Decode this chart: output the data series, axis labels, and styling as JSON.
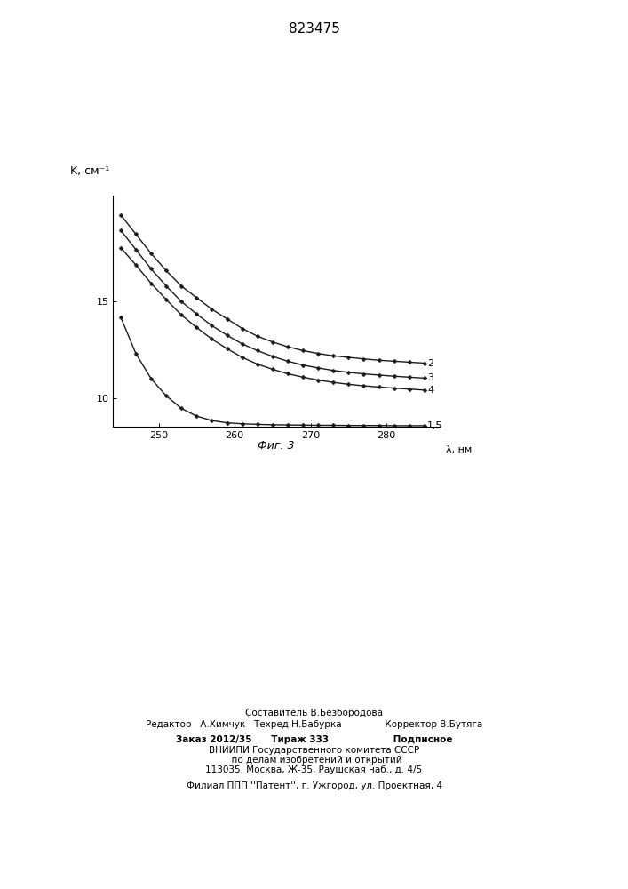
{
  "title": "823475",
  "ylabel": "K, см⁻¹",
  "xlabel": "λ, нм",
  "caption": "Фиг. 3",
  "xlim": [
    244,
    287
  ],
  "ylim": [
    8.5,
    20.5
  ],
  "xticks": [
    250,
    260,
    270,
    280
  ],
  "yticks": [
    10,
    15
  ],
  "background_color": "#ffffff",
  "curve_color": "#1a1a1a",
  "curve2_label": "2",
  "curve3_label": "3",
  "curve4_label": "4",
  "curve15_label": "1,5",
  "x_data": [
    245,
    247,
    249,
    251,
    253,
    255,
    257,
    259,
    261,
    263,
    265,
    267,
    269,
    271,
    273,
    275,
    277,
    279,
    281,
    283,
    285
  ],
  "y_curve2": [
    19.5,
    18.5,
    17.5,
    16.6,
    15.8,
    15.2,
    14.6,
    14.1,
    13.6,
    13.2,
    12.9,
    12.65,
    12.45,
    12.3,
    12.18,
    12.1,
    12.02,
    11.95,
    11.9,
    11.85,
    11.8
  ],
  "y_curve3": [
    18.7,
    17.7,
    16.7,
    15.8,
    15.0,
    14.35,
    13.75,
    13.25,
    12.8,
    12.45,
    12.15,
    11.9,
    11.7,
    11.55,
    11.42,
    11.32,
    11.24,
    11.18,
    11.12,
    11.07,
    11.02
  ],
  "y_curve4": [
    17.8,
    16.9,
    15.95,
    15.1,
    14.3,
    13.65,
    13.05,
    12.55,
    12.1,
    11.75,
    11.48,
    11.25,
    11.07,
    10.92,
    10.8,
    10.7,
    10.62,
    10.56,
    10.5,
    10.45,
    10.4
  ],
  "y_curve15": [
    14.2,
    12.3,
    11.0,
    10.1,
    9.45,
    9.05,
    8.82,
    8.7,
    8.65,
    8.62,
    8.6,
    8.59,
    8.58,
    8.57,
    8.57,
    8.56,
    8.56,
    8.56,
    8.55,
    8.55,
    8.55
  ],
  "footer_top_line1": "Составитель В.Безбородова",
  "footer_top_line2": "Редактор   А.Химчук   Техред Н.Бабурка               Корректор В.Бутяга",
  "footer_mid_line1": "Заказ 2012/35      Тираж 333                    Подписное",
  "footer_mid_line2": "ВНИИПИ Государственного комитета СССР",
  "footer_mid_line3": "  по делам изобретений и открытий",
  "footer_mid_line4": "113035, Москва, Ж-35, Раушская наб., д. 4/5",
  "footer_bot_line1": "Филиал ППП ''Патент'', г. Ужгород, ул. Проектная, 4"
}
